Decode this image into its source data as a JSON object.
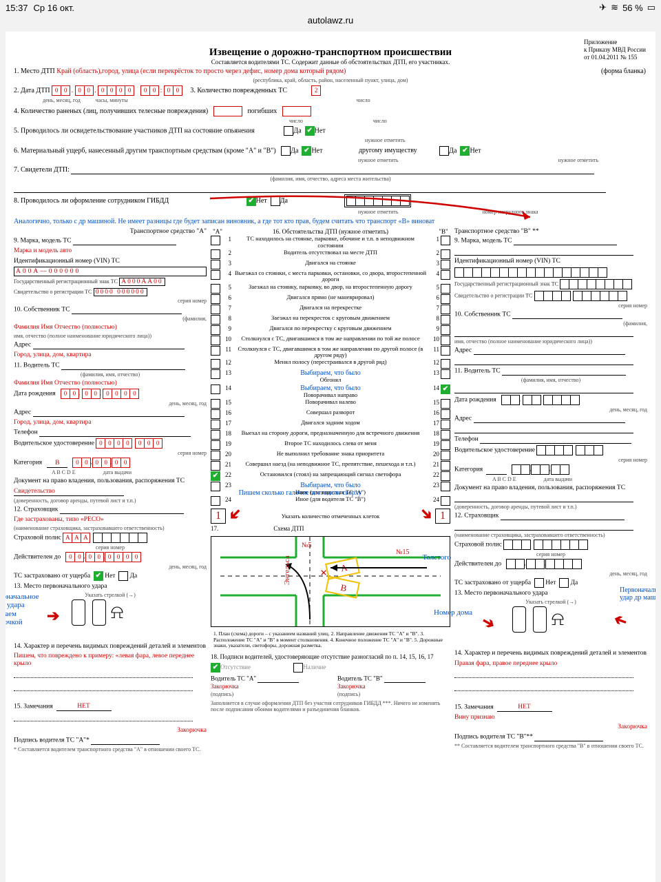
{
  "statusbar": {
    "time": "15:37",
    "date": "Ср 16 окт.",
    "battery": "56 %",
    "airplane": "✈︎",
    "wifi": "≋",
    "batt_icon": "▭"
  },
  "url": "autolawz.ru",
  "header": {
    "appx1": "Приложение",
    "appx2": "к Приказу МВД России",
    "appx3": "от 01.04.2011 № 155",
    "title": "Извещение о дорожно-транспортном происшествии",
    "subtitle": "Составляется водителями ТС. Содержит данные об обстоятельствах ДТП, его участниках.",
    "formtype": "(форма бланка)"
  },
  "f1": {
    "label": "1. Место ДТП",
    "hint": "Край (область),город, улица (если перекрёсток то просто через дефис, номер дома который рядом)",
    "sub": "(республика, край, область, район, населенный пункт, улица, дом)"
  },
  "f2": {
    "label": "2. Дата ДТП",
    "d": "00",
    "m": "00",
    "y": "0000",
    "hh": "00",
    "mm": "00",
    "sub1": "день, месяц, год",
    "sub2": "часы, минуты"
  },
  "f3": {
    "label": "3. Количество поврежденных ТС",
    "val": "2",
    "sub": "число"
  },
  "f4": {
    "label": "4. Количество раненых (лиц, получивших телесные повреждения)",
    "sub": "число",
    "dead": "погибших",
    "sub2": "число"
  },
  "f5": {
    "label": "5. Проводилось ли освидетельствование участников ДТП на состояние опьянения",
    "yes": "Да",
    "no": "Нет",
    "sub": "нужное отметить"
  },
  "f6": {
    "label": "6. Материальный ущерб, нанесенный другим транспортным средствам (кроме \"А\" и \"В\")",
    "yes": "Да",
    "no": "Нет",
    "sub": "нужное отметить",
    "other": "другому имуществу",
    "yes2": "Да",
    "no2": "Нет",
    "sub2": "нужное отметить"
  },
  "f7": {
    "label": "7. Свидетели ДТП:",
    "sub": "(фамилия, имя, отчество, адреса места жительства)"
  },
  "f8": {
    "label": "8. Проводилось ли оформление сотрудником ГИБДД",
    "no": "Нет",
    "yes": "Да",
    "sub": "нужное отметить",
    "badge": "номер нагрудного знака"
  },
  "note8": "Аналогично, только с др машиной. Не имеет разницы где будет записан виновник, а где тот кто прав, будем считать что транспорт «B» виноват",
  "colA": {
    "head": "Транспортное средство \"А\"",
    "l9": "9. Марка, модель ТС",
    "h9": "Марка и модель авто",
    "lvin": "Идентификационный номер (VIN) ТС",
    "vin": "A00A—000000",
    "lgrz": "Государственный регистрационный знак ТС",
    "grz": "A000AA00",
    "lsvid": "Свидетельство о регистрации ТС",
    "svid": "0000  000000",
    "svidlbl": "серия                       номер",
    "l10": "10. Собственник ТС",
    "h10": "Фамилия Имя Отчество (полностью)",
    "sub10": "(фамилия,",
    "sub10b": "имя, отчество (полное наименование юридического лица))",
    "laddr": "Адрес",
    "haddr": "Город, улица, дом, квартира",
    "l11": "11. Водитель ТС",
    "sub11": "(фамилия, имя, отчество)",
    "h11": "Фамилия Имя Отчество (полностью)",
    "ldob": "Дата рождения",
    "dob": "00 . 00 . 0000",
    "subdob": "день, месяц, год",
    "laddr2": "Адрес",
    "haddr2": "Город, улица, дом, квартира",
    "ltel": "Телефон",
    "llic": "Водительское удостоверение",
    "lic": "0000    000",
    "liclbl": "серия              номер",
    "lcat": "Категория",
    "cat": "B",
    "cats": "A B C D E",
    "ldate": "00 . 00 . 00",
    "datelbl": "дата выдачи",
    "ldoc": "Документ на право владения, пользования, распоряжения ТС",
    "hdoc": "Свидетельство",
    "subdoc": "(доверенность, договор аренды, путевой лист и т.п.)",
    "l12": "12. Страховщик",
    "h12": "Где застрахованы, типо «РЕСО»",
    "sub12": "(наименование страховщика, застраховавшего ответственность)",
    "lpol": "Страховой полис",
    "pol": "ААА",
    "pollbl": "серия                             номер",
    "lval": "Действителен до",
    "val": "00 . 00 . 0000",
    "vallbl": "день, месяц, год",
    "lins": "ТС застраховано от ущерба",
    "no": "Нет",
    "yes": "Да",
    "l13": "13. Место первоначального удара",
    "sub13": "Указать стрелкой (→)",
    "noteL": "Первоначальное место удара отмечаем стрелочкой",
    "l14": "14. Характер и перечень видимых повреждений деталей и элементов",
    "h14": "Пишем, что повреждено к примеру: «левая фара, левое переднее крыло",
    "l15": "15. Замечания",
    "h15": "НЕТ",
    "lsign": "Подпись водителя ТС \"А\"*",
    "hsign": "Закорючка",
    "foot": "* Составляется водителем транспортного средства \"А\" в отношении своего ТС."
  },
  "colB": {
    "head": "Транспортное средство \"В\" **",
    "l9": "9. Марка, модель ТС",
    "lvin": "Идентификационный номер (VIN) ТС",
    "lgrz": "Государственный регистрационный знак ТС",
    "lsvid": "Свидетельство о регистрации ТС",
    "svidlbl": "серия                  номер",
    "l10": "10. Собственник ТС",
    "sub10": "(фамилия,",
    "sub10b": "имя, отчество (полное наименование юридического лица))",
    "laddr": "Адрес",
    "l11": "11. Водитель ТС",
    "sub11": "(фамилия, имя, отчество)",
    "ldob": "Дата рождения",
    "subdob": "день, месяц, год",
    "laddr2": "Адрес",
    "ltel": "Телефон",
    "llic": "Водительское удостоверение",
    "liclbl": "серия              номер",
    "lcat": "Категория",
    "cats": "A B C D E",
    "datelbl": "дата выдачи",
    "ldoc": "Документ на право владения, пользования, распоряжения ТС",
    "subdoc": "(доверенность, договор аренды, путевой лист и т.п.)",
    "l12": "12. Страховщик",
    "sub12": "(наименование страховщика, застраховавшего ответственность)",
    "lpol": "Страховой полис",
    "pollbl": "серия                       номер",
    "lval": "Действителен до",
    "vallbl": "день, месяц, год",
    "lins": "ТС застраховано от ущерба",
    "no": "Нет",
    "yes": "Да",
    "l13": "13. Место первоначального удара",
    "sub13": "Указать стрелкой (→)",
    "noteR": "Первоначальный удар др машины",
    "noteR2": "Номер дома",
    "l14": "14. Характер и перечень видимых повреждений деталей и элементов",
    "h14": "Правая фара, правое переднее крыло",
    "l15": "15. Замечания",
    "h15": "НЕТ",
    "h15b": "Вину признаю",
    "lsign": "Подпись водителя ТС \"В\"**",
    "hsign": "Закорючка",
    "foot": "** Составляется водителем транспортного средства \"В\" в отношении своего ТС."
  },
  "circ": {
    "head": "16. Обстоятельства ДТП (нужное отметить)",
    "a": "\"А\"",
    "b": "\"В\"",
    "items": [
      "ТС находилось на стоянке, парковке, обочине и т.п. в неподвижном состоянии",
      "Водитель отсутствовал на месте ДТП",
      "Двигался на стоянке",
      "Выезжал со стоянки, с места парковки, остановки, со двора, второстепенной дороги",
      "Заезжал на стоянку, парковку, во двор, на второстепенную дорогу",
      "Двигался прямо (не маневрировал)",
      "Двигался на перекрестке",
      "Заезжал на перекресток с круговым движением",
      "Двигался по перекрестку с круговым движением",
      "Столкнулся с ТС, двигавшимся в том же направлении по той же полосе",
      "Столкнулся с ТС, двигавшимся в том же направлении по другой полосе (в другом ряду)",
      "Менял полосу (перестраивался в другой ряд)",
      "Обгонял",
      "Поворачивал направо",
      "Поворачивал налево",
      "Совершал разворот",
      "Двигался задним ходом",
      "Выехал на сторону дороги, предназначенную для встречного движения",
      "Второе ТС находилось слева от меня",
      "Не выполнил требование знака приоритета",
      "Совершил наезд (на неподвижное ТС, препятствие, пешехода и т.п.)",
      "Остановился (стоял) на запрещающий сигнал светофора",
      "Иное (для водителя ТС \"А\")",
      "Иное (для водителя ТС \"В\")"
    ],
    "check22A": true,
    "check14B": true,
    "sel": "Выбираем, что было",
    "count": "Указать количество отмеченных клеток",
    "countNote": "Пишем сколько галочек поставили сверху",
    "cnt": "1",
    "l17": "17.",
    "schHead": "Схема ДТП",
    "streets": {
      "v": "Энгельса",
      "vn": "№5",
      "h": "Толстого",
      "hn": "№15"
    },
    "schTxt": "1. План (схема) дороги – с указанием названий улиц.   2. Направление движения ТС \"А\" и \"В\".   3. Расположение ТС \"А\" и \"В\" в момент столкновения.   4. Конечное положение ТС \"А\" и \"В\".   5. Дорожные знаки, указатели, светофоры, дорожная разметка.",
    "l18": "18. Подписи водителей, удостоверяющие отсутствие разногласий по п. 14, 15, 16, 17",
    "abs": "Отсутствие",
    "pre": "Наличие",
    "sA": "Водитель ТС \"А\"",
    "sB": "Водитель ТС \"В\"",
    "sub": "(подпись)",
    "sAnote": "Закорючка",
    "sBnote": "Закорючка",
    "foot": "Заполняется в случае оформления ДТП без участия сотрудников ГИБДД ***. Ничего не изменять после подписания обоими водителями и разъединения бланков."
  },
  "colors": {
    "red": "#d00000",
    "blue": "#0050c8",
    "green": "#1fae2f",
    "yellow": "#f0d020"
  }
}
